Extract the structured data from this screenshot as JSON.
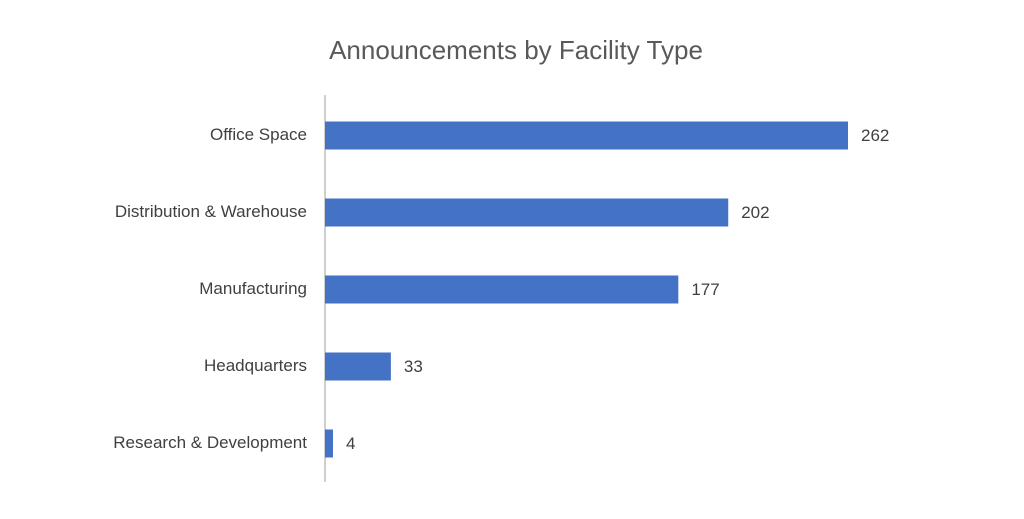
{
  "chart_data": {
    "type": "barh",
    "title": "Announcements by Facility Type",
    "categories": [
      "Office Space",
      "Distribution & Warehouse",
      "Manufacturing",
      "Headquarters",
      "Research & Development"
    ],
    "values": [
      262,
      202,
      177,
      33,
      4
    ],
    "color": "#4472c4"
  }
}
